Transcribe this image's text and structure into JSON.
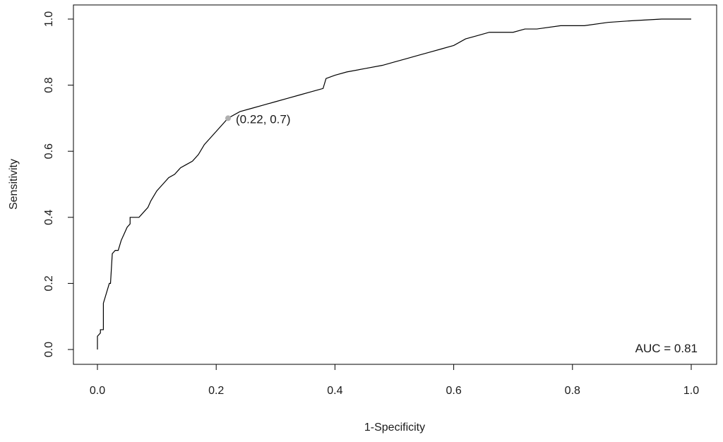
{
  "chart_data": {
    "type": "line",
    "xlabel": "1-Specificity",
    "ylabel": "Sensitivity",
    "xlim": [
      0,
      1
    ],
    "ylim": [
      0,
      1
    ],
    "x_ticks": [
      0.0,
      0.2,
      0.4,
      0.6,
      0.8,
      1.0
    ],
    "y_ticks": [
      0.0,
      0.2,
      0.4,
      0.6,
      0.8,
      1.0
    ],
    "x_tick_labels": [
      "0.0",
      "0.2",
      "0.4",
      "0.6",
      "0.8",
      "1.0"
    ],
    "y_tick_labels": [
      "0.0",
      "0.2",
      "0.4",
      "0.6",
      "0.8",
      "1.0"
    ],
    "grid": false,
    "series": [
      {
        "color": "#000000",
        "points": [
          [
            0.0,
            0.0
          ],
          [
            0.0,
            0.04
          ],
          [
            0.005,
            0.05
          ],
          [
            0.005,
            0.06
          ],
          [
            0.01,
            0.06
          ],
          [
            0.01,
            0.14
          ],
          [
            0.015,
            0.17
          ],
          [
            0.02,
            0.2
          ],
          [
            0.022,
            0.2
          ],
          [
            0.025,
            0.29
          ],
          [
            0.03,
            0.3
          ],
          [
            0.035,
            0.3
          ],
          [
            0.04,
            0.33
          ],
          [
            0.045,
            0.35
          ],
          [
            0.05,
            0.37
          ],
          [
            0.055,
            0.38
          ],
          [
            0.055,
            0.4
          ],
          [
            0.065,
            0.4
          ],
          [
            0.07,
            0.4
          ],
          [
            0.08,
            0.42
          ],
          [
            0.085,
            0.43
          ],
          [
            0.09,
            0.45
          ],
          [
            0.1,
            0.48
          ],
          [
            0.11,
            0.5
          ],
          [
            0.12,
            0.52
          ],
          [
            0.13,
            0.53
          ],
          [
            0.14,
            0.55
          ],
          [
            0.15,
            0.56
          ],
          [
            0.16,
            0.57
          ],
          [
            0.17,
            0.59
          ],
          [
            0.18,
            0.62
          ],
          [
            0.19,
            0.64
          ],
          [
            0.2,
            0.66
          ],
          [
            0.21,
            0.68
          ],
          [
            0.22,
            0.7
          ],
          [
            0.24,
            0.72
          ],
          [
            0.26,
            0.73
          ],
          [
            0.28,
            0.74
          ],
          [
            0.3,
            0.75
          ],
          [
            0.32,
            0.76
          ],
          [
            0.34,
            0.77
          ],
          [
            0.36,
            0.78
          ],
          [
            0.38,
            0.79
          ],
          [
            0.385,
            0.82
          ],
          [
            0.4,
            0.83
          ],
          [
            0.42,
            0.84
          ],
          [
            0.45,
            0.85
          ],
          [
            0.48,
            0.86
          ],
          [
            0.5,
            0.87
          ],
          [
            0.52,
            0.88
          ],
          [
            0.54,
            0.89
          ],
          [
            0.56,
            0.9
          ],
          [
            0.58,
            0.91
          ],
          [
            0.6,
            0.92
          ],
          [
            0.62,
            0.94
          ],
          [
            0.64,
            0.95
          ],
          [
            0.66,
            0.96
          ],
          [
            0.7,
            0.96
          ],
          [
            0.72,
            0.97
          ],
          [
            0.74,
            0.97
          ],
          [
            0.78,
            0.98
          ],
          [
            0.82,
            0.98
          ],
          [
            0.86,
            0.99
          ],
          [
            0.9,
            0.995
          ],
          [
            0.95,
            1.0
          ],
          [
            1.0,
            1.0
          ]
        ]
      }
    ],
    "highlight_point": {
      "x": 0.22,
      "y": 0.7,
      "label": "(0.22, 0.7)",
      "color": "#b0b0b0"
    },
    "auc_label": "AUC = 0.81",
    "auc_label_position": "bottom-right"
  }
}
